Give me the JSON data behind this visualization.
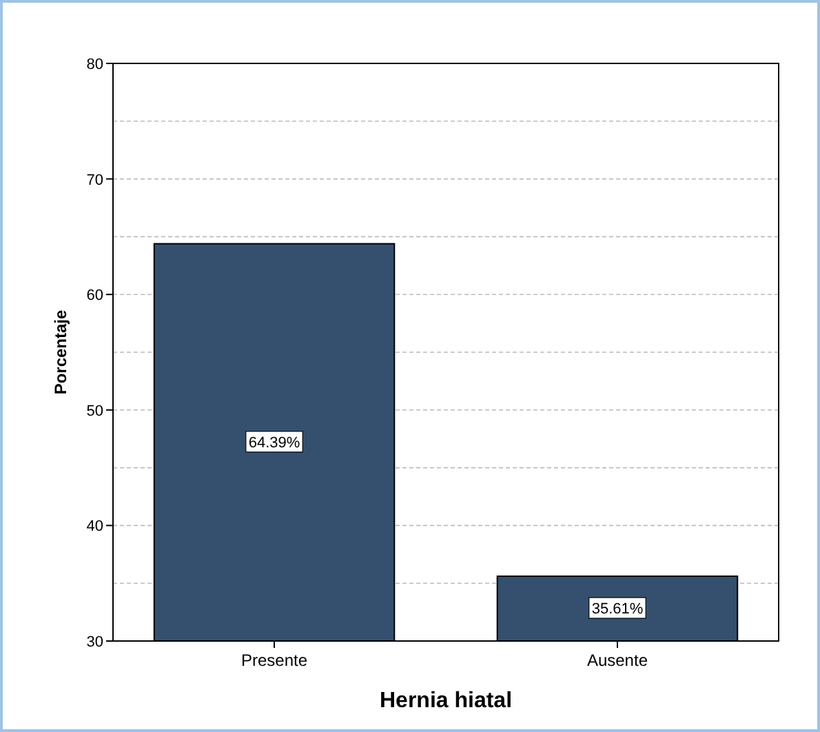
{
  "chart_data": {
    "type": "bar",
    "xlabel": "Hernia hiatal",
    "ylabel": "Porcentaje",
    "categories": [
      "Presente",
      "Ausente"
    ],
    "values": [
      64.39,
      35.61
    ],
    "value_labels": [
      "64.39%",
      "35.61%"
    ],
    "color": "#34506e",
    "ylim": [
      30,
      80
    ],
    "yticks": [
      30,
      {
        "value": 35,
        "label": null
      },
      40,
      {
        "value": 45,
        "label": null
      },
      50,
      {
        "value": 55,
        "label": null
      },
      60,
      {
        "value": 65,
        "label": null
      },
      70,
      {
        "value": 75,
        "label": null
      },
      80
    ],
    "grid": "y"
  }
}
